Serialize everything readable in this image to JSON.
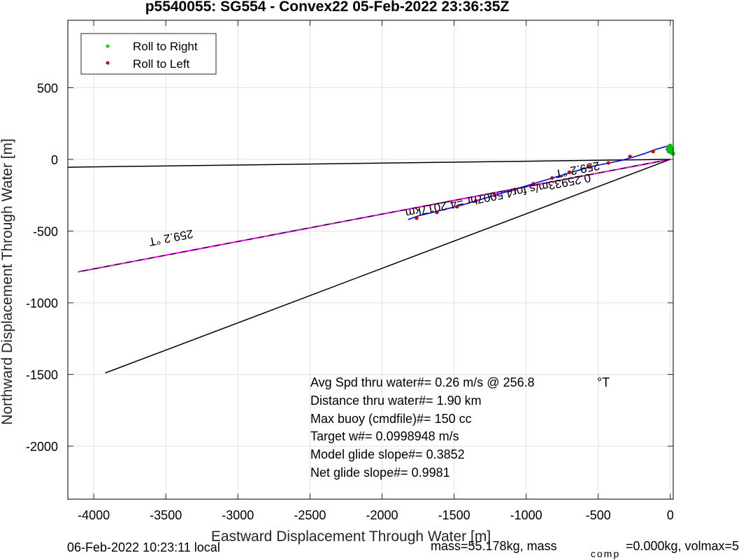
{
  "chart_data": {
    "type": "line",
    "title": "p5540055: SG554 - Convex22 05-Feb-2022 23:36:35Z",
    "xlabel": "Eastward Displacement Through Water [m]",
    "ylabel": "Northward Displacement Through Water [m]",
    "xlim": [
      -4180,
      20
    ],
    "ylim": [
      -2370,
      970
    ],
    "grid": true,
    "x_ticks": [
      -4000,
      -3500,
      -3000,
      -2500,
      -2000,
      -1500,
      -1000,
      -500,
      0
    ],
    "y_ticks": [
      500,
      0,
      -500,
      -1000,
      -1500,
      -2000
    ],
    "x_tick_labels": [
      "-4000",
      "-3500",
      "-3000",
      "-2500",
      "-2000",
      "-1500",
      "-1000",
      "-500",
      "0"
    ],
    "y_tick_labels": [
      "500",
      "0",
      "-500",
      "-1000",
      "-1500",
      "-2000"
    ],
    "legend": {
      "position": "top-left",
      "entries": [
        {
          "label": "Roll to Right",
          "color": "#00e000"
        },
        {
          "label": "Roll to Left",
          "color": "#e00000"
        }
      ]
    },
    "series": [
      {
        "kind": "heading-line",
        "color": "#000000",
        "x": [
          0,
          -4180
        ],
        "y": [
          0,
          -55
        ]
      },
      {
        "kind": "heading-line",
        "color": "#000000",
        "x": [
          0,
          -3920
        ],
        "y": [
          0,
          -1490
        ]
      },
      {
        "kind": "course-line",
        "color": "#ff00ff",
        "x": [
          0,
          -4110
        ],
        "y": [
          0,
          -785
        ]
      },
      {
        "kind": "track",
        "color": "#0000ff",
        "x": [
          20,
          10,
          -30,
          -100,
          -180,
          -260,
          -350,
          -450,
          -550,
          -650,
          -750,
          -850,
          -950,
          -1050,
          -1150,
          -1250,
          -1350,
          -1450,
          -1550,
          -1650,
          -1750,
          -1820
        ],
        "y": [
          50,
          85,
          90,
          70,
          40,
          15,
          -10,
          -30,
          -50,
          -80,
          -110,
          -140,
          -170,
          -200,
          -230,
          -260,
          -290,
          -320,
          -345,
          -370,
          -395,
          -420
        ]
      },
      {
        "kind": "roll-right",
        "color": "#00c000",
        "x": [
          18,
          10,
          0,
          -10,
          -18,
          -10,
          5,
          15
        ],
        "y": [
          40,
          75,
          95,
          90,
          70,
          55,
          50,
          45
        ]
      },
      {
        "kind": "roll-left",
        "color": "#cc0000",
        "x": [
          -120,
          -280,
          -430,
          -560,
          -700,
          -820,
          -950,
          -1080,
          -1220,
          -1350,
          -1480,
          -1620,
          -1760
        ],
        "y": [
          55,
          20,
          -25,
          -50,
          -90,
          -130,
          -170,
          -210,
          -250,
          -290,
          -330,
          -370,
          -410
        ]
      }
    ],
    "annotations": [
      {
        "text": "259.2 °T",
        "x": -3470,
        "y": -520,
        "rotation": 169
      },
      {
        "text": "259.2 °T",
        "x": -650,
        "y": -45,
        "rotation": 169
      },
      {
        "text": "0.25933m/s for4.5007hr =4.2017km",
        "x": -1200,
        "y": -225,
        "rotation": 169
      }
    ],
    "stats": [
      "Avg Spd thru water#=  0.26 m/s @ 256.8",
      "Distance thru water#=  1.90 km",
      "Max buoy (cmdfile)#= 150 cc",
      "Target w#= 0.0998948 m/s",
      "Model glide slope#= 0.3852",
      "Net glide slope#= 0.9981"
    ],
    "stats_unit": "°T",
    "footer_left": "06-Feb-2022 10:23:11 local",
    "footer_right_a": "mass=55.178kg, mass",
    "footer_right_sub": "comp",
    "footer_right_b": "=0.000kg, volmax=5"
  }
}
